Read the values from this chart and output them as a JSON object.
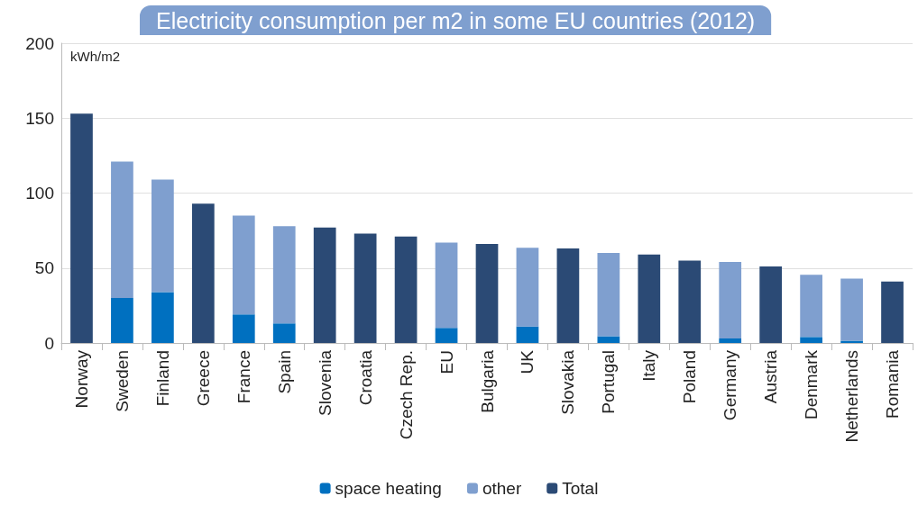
{
  "chart_data": {
    "type": "bar",
    "title": "Electricity consumption per m2 in some EU countries (2012)",
    "ylabel": "kWh/m2",
    "categories": [
      "Norway",
      "Sweden",
      "Finland",
      "Greece",
      "France",
      "Spain",
      "Slovenia",
      "Croatia",
      "Czech Rep.",
      "EU",
      "Bulgaria",
      "UK",
      "Slovakia",
      "Portugal",
      "Italy",
      "Poland",
      "Germany",
      "Austria",
      "Denmark",
      "Netherlands",
      "Romania"
    ],
    "series": [
      {
        "name": "space heating",
        "color": "#0070c0",
        "values": [
          null,
          30,
          34,
          null,
          19,
          13,
          null,
          null,
          null,
          10,
          null,
          11,
          null,
          4.5,
          null,
          null,
          3,
          null,
          4,
          1.5,
          null
        ]
      },
      {
        "name": "other",
        "color": "#7f9fcf",
        "values": [
          null,
          91,
          75,
          null,
          66,
          65,
          null,
          null,
          null,
          57,
          null,
          52.5,
          null,
          55.5,
          null,
          null,
          51,
          null,
          41.5,
          41.5,
          null
        ]
      },
      {
        "name": "Total",
        "color": "#2b4a75",
        "values": [
          153,
          null,
          null,
          93,
          null,
          null,
          77,
          73,
          71,
          null,
          66,
          null,
          63,
          null,
          59,
          55,
          null,
          51,
          null,
          null,
          41
        ]
      }
    ],
    "stacked": true,
    "ylim": [
      0,
      200
    ],
    "yticks": [
      0,
      50,
      100,
      150,
      200
    ],
    "grid": "y",
    "legend": "bottom"
  }
}
